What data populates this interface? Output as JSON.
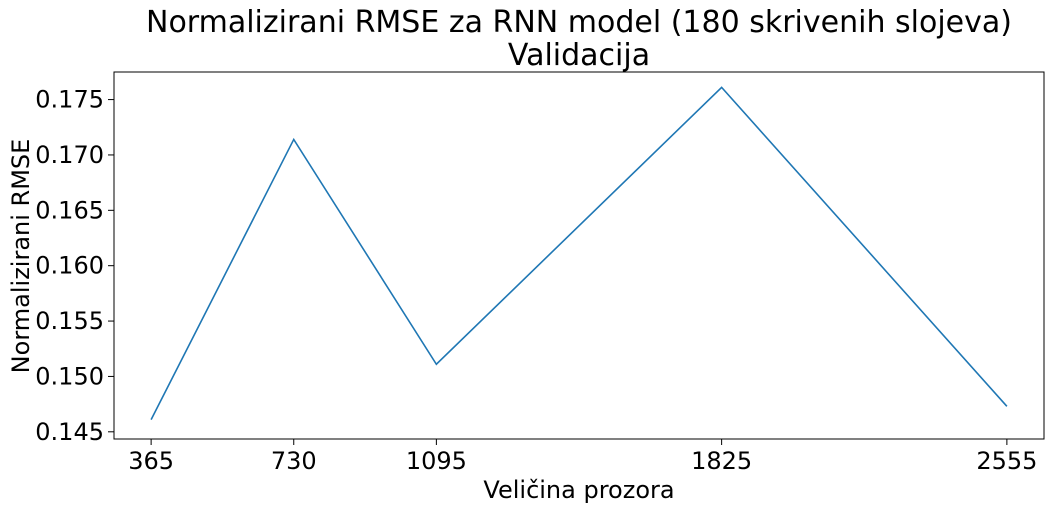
{
  "chart_data": {
    "type": "line",
    "title": "Normalizirani RMSE za RNN model (180 skrivenih slojeva)",
    "subtitle": "Validacija",
    "xlabel": "Veličina prozora",
    "ylabel": "Normalizirani RMSE",
    "x": [
      365,
      730,
      1095,
      1825,
      2555
    ],
    "series": [
      {
        "values": [
          0.1461,
          0.1714,
          0.1511,
          0.1761,
          0.1473
        ],
        "color": "#1f77b4"
      }
    ],
    "xticks": [
      "365",
      "730",
      "1095",
      "1825",
      "2555"
    ],
    "yticks": [
      "0.145",
      "0.150",
      "0.155",
      "0.160",
      "0.165",
      "0.170",
      "0.175"
    ],
    "xlim": [
      270,
      2650
    ],
    "ylim": [
      0.14435,
      0.17749
    ],
    "grid": false,
    "legend": false
  }
}
